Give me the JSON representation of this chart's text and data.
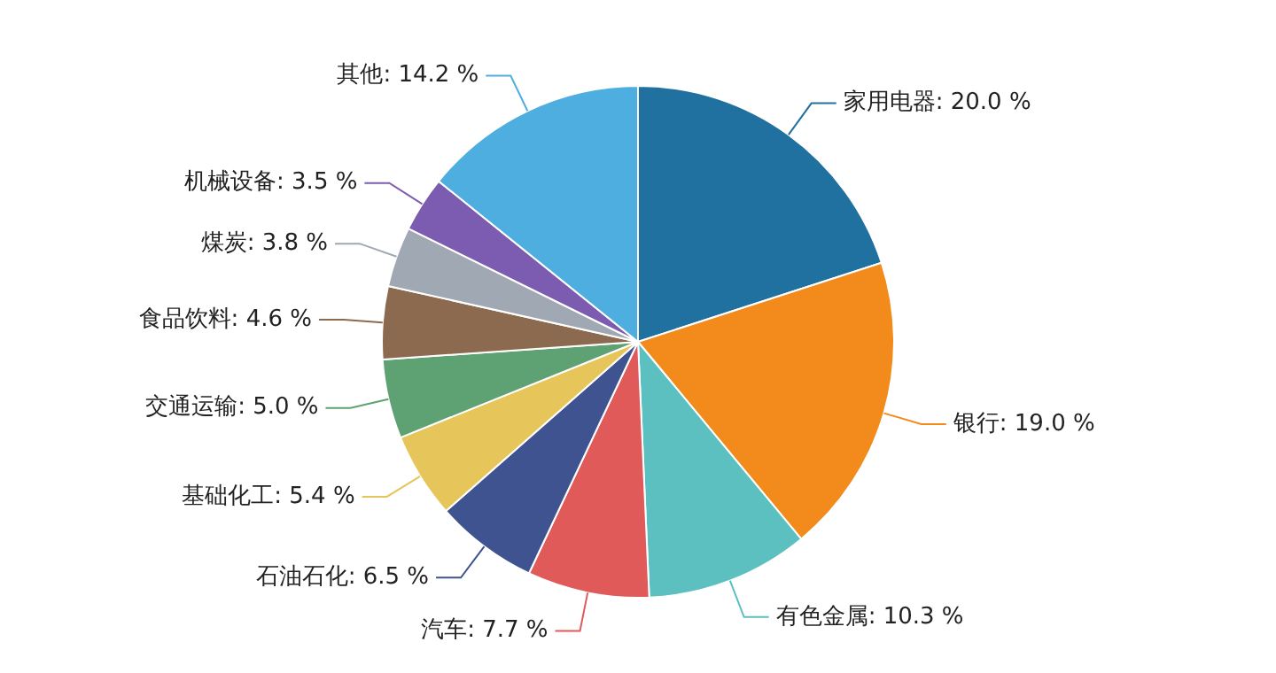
{
  "chart_data": {
    "type": "pie",
    "categories": [
      "家用电器",
      "银行",
      "有色金属",
      "汽车",
      "石油石化",
      "基础化工",
      "交通运输",
      "食品饮料",
      "煤炭",
      "机械设备",
      "其他"
    ],
    "values": [
      20.0,
      19.0,
      10.3,
      7.7,
      6.5,
      5.4,
      5.0,
      4.6,
      3.8,
      3.5,
      14.2
    ],
    "value_labels": [
      "20.0 %",
      "19.0 %",
      "10.3 %",
      "7.7 %",
      "6.5 %",
      "5.4 %",
      "5.0 %",
      "4.6 %",
      "3.8 %",
      "3.5 %",
      "14.2 %"
    ],
    "colors": [
      "#2070a0",
      "#f28a1c",
      "#5cbfc0",
      "#e15a5a",
      "#3f5390",
      "#e6c65a",
      "#5ea273",
      "#8c6a4f",
      "#a0a8b4",
      "#7c5cb0",
      "#4eaee0"
    ],
    "legend": false
  }
}
